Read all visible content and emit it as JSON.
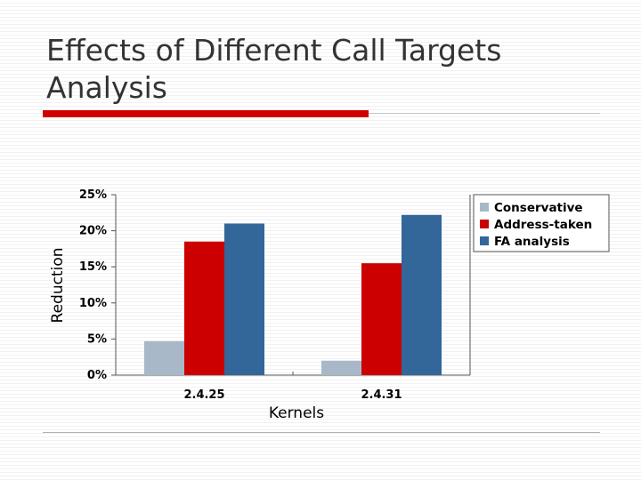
{
  "slide": {
    "title": "Effects of Different Call Targets Analysis",
    "accent_color": "#d10000"
  },
  "chart_data": {
    "type": "bar",
    "categories": [
      "2.4.25",
      "2.4.31"
    ],
    "series": [
      {
        "name": "Conservative",
        "values": [
          4.7,
          2.0
        ],
        "color": "#a8b8c8"
      },
      {
        "name": "Address-taken",
        "values": [
          18.5,
          15.5
        ],
        "color": "#cc0000"
      },
      {
        "name": "FA analysis",
        "values": [
          21.0,
          22.2
        ],
        "color": "#336699"
      }
    ],
    "xlabel": "Kernels",
    "ylabel": "Reduction",
    "ylim": [
      0,
      25
    ],
    "yticks": [
      "0%",
      "5%",
      "10%",
      "15%",
      "20%",
      "25%"
    ],
    "ytick_values": [
      0,
      5,
      10,
      15,
      20,
      25
    ],
    "grid": false,
    "legend": "top-right"
  }
}
